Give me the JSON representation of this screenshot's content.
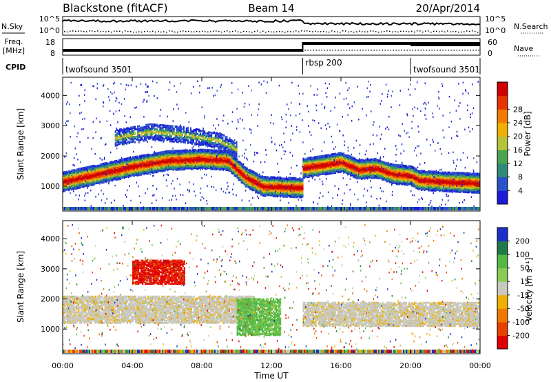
{
  "header": {
    "station": "Blackstone (fitACF)",
    "beam": "Beam 14",
    "date": "20/Apr/2014"
  },
  "aux_panels": {
    "nsky_label": "N.Sky",
    "nsearch_label": "N.Search",
    "nsky_ticks": [
      "10^5",
      "10^0"
    ],
    "freq_label_line1": "Freq.",
    "freq_label_line2": "[MHz]",
    "freq_ticks": [
      "18",
      "8"
    ],
    "nave_label": "Nave",
    "nave_ticks": [
      "60",
      "0"
    ],
    "cpid_label": "CPID",
    "cpid_segments": [
      {
        "name": "twofsound 3501",
        "start_hour": 0,
        "end_hour": 13.8
      },
      {
        "name": "rbsp 200",
        "start_hour": 13.8,
        "end_hour": 20.0
      },
      {
        "name": "twofsound 3501",
        "start_hour": 20.0,
        "end_hour": 24
      }
    ],
    "freq_step_hour": 13.8,
    "nave_high_from_hour": 20.0
  },
  "chart_data": [
    {
      "type": "heatmap",
      "name": "power",
      "ylabel": "Slant Range [km]",
      "ylim": [
        180,
        4600
      ],
      "yticks": [
        1000,
        2000,
        3000,
        4000
      ],
      "xlabel": "",
      "xlim_hours": [
        0,
        24
      ],
      "colorbar": {
        "label": "Power [dB]",
        "ticks": [
          4,
          8,
          12,
          16,
          20,
          24,
          28
        ],
        "colors": [
          "#1c1cd8",
          "#2a52c9",
          "#2f8a76",
          "#4aa34e",
          "#b4c23c",
          "#f0b000",
          "#f27a00",
          "#e53500",
          "#d10000"
        ]
      },
      "bands": [
        {
          "hours": [
            0,
            2,
            4,
            6,
            8,
            9.5,
            10.5,
            11.5,
            13.8
          ],
          "center_km": [
            1150,
            1400,
            1650,
            1850,
            1900,
            1850,
            1300,
            1000,
            950
          ],
          "level": "strong"
        },
        {
          "hours": [
            13.8,
            15,
            16,
            17,
            18,
            19,
            20,
            20.5,
            22,
            24
          ],
          "center_km": [
            1600,
            1700,
            1800,
            1550,
            1600,
            1400,
            1350,
            1200,
            1150,
            1100
          ],
          "level": "strong"
        },
        {
          "hours": [
            3,
            5,
            7,
            9,
            10
          ],
          "center_km": [
            2600,
            2800,
            2700,
            2500,
            2200
          ],
          "level": "medium"
        }
      ]
    },
    {
      "type": "heatmap",
      "name": "velocity",
      "ylabel": "Slant Range [km]",
      "ylim": [
        180,
        4600
      ],
      "yticks": [
        1000,
        2000,
        3000,
        4000
      ],
      "xlabel": "Time UT",
      "xlim_hours": [
        0,
        24
      ],
      "xticks": [
        "00:00",
        "04:00",
        "08:00",
        "12:00",
        "16:00",
        "20:00",
        "00:00"
      ],
      "colorbar": {
        "label": "Velocity [m s⁻¹]",
        "ticks": [
          200,
          100,
          50,
          15,
          -15,
          -50,
          -100,
          -200
        ],
        "colors": [
          "#1c2fc8",
          "#1f7a4a",
          "#55b845",
          "#88cc55",
          "#c8c8bc",
          "#f0b000",
          "#f07800",
          "#e84000",
          "#e00000"
        ]
      },
      "features": [
        {
          "hours": [
            4,
            7
          ],
          "range_km": [
            2500,
            3300
          ],
          "velocity": "-200"
        },
        {
          "hours": [
            0,
            11
          ],
          "range_km": [
            1200,
            2100
          ],
          "velocity": "-15 to 15"
        },
        {
          "hours": [
            10,
            12.5
          ],
          "range_km": [
            800,
            2000
          ],
          "velocity": "50"
        },
        {
          "hours": [
            13.8,
            24
          ],
          "range_km": [
            1100,
            1900
          ],
          "velocity": "-15 to 15"
        }
      ]
    }
  ]
}
